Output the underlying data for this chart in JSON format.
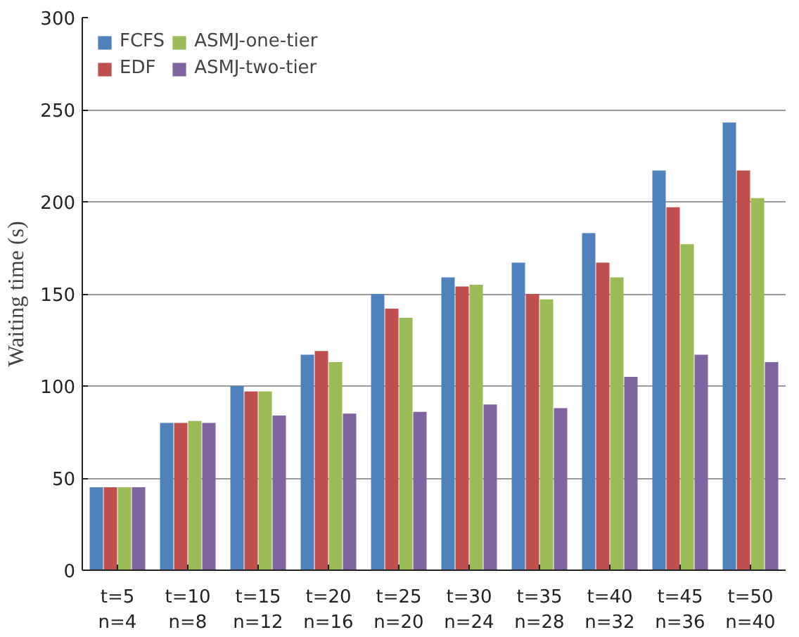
{
  "chart_data": {
    "type": "bar",
    "ylabel": "Waiting time (s)",
    "categories": [
      "t=5\nn=4",
      "t=10\nn=8",
      "t=15\nn=12",
      "t=20\nn=16",
      "t=25\nn=20",
      "t=30\nn=24",
      "t=35\nn=28",
      "t=40\nn=32",
      "t=45\nn=36",
      "t=50\nn=40"
    ],
    "series": [
      {
        "name": "FCFS",
        "color": "#4f81bd",
        "values": [
          45,
          80,
          100,
          117,
          150,
          159,
          167,
          183,
          217,
          243
        ]
      },
      {
        "name": "EDF",
        "color": "#c0504d",
        "values": [
          45,
          80,
          97,
          119,
          142,
          154,
          150,
          167,
          197,
          217
        ]
      },
      {
        "name": "ASMJ-one-tier",
        "color": "#9bbb59",
        "values": [
          45,
          81,
          97,
          113,
          137,
          155,
          147,
          159,
          177,
          202
        ]
      },
      {
        "name": "ASMJ-two-tier",
        "color": "#8064a2",
        "values": [
          45,
          80,
          84,
          85,
          86,
          90,
          88,
          105,
          117,
          113
        ]
      }
    ],
    "ylim": [
      0,
      300
    ],
    "yticks": [
      0,
      50,
      100,
      150,
      200,
      250,
      300
    ],
    "grid": "y",
    "legend": "top left"
  }
}
